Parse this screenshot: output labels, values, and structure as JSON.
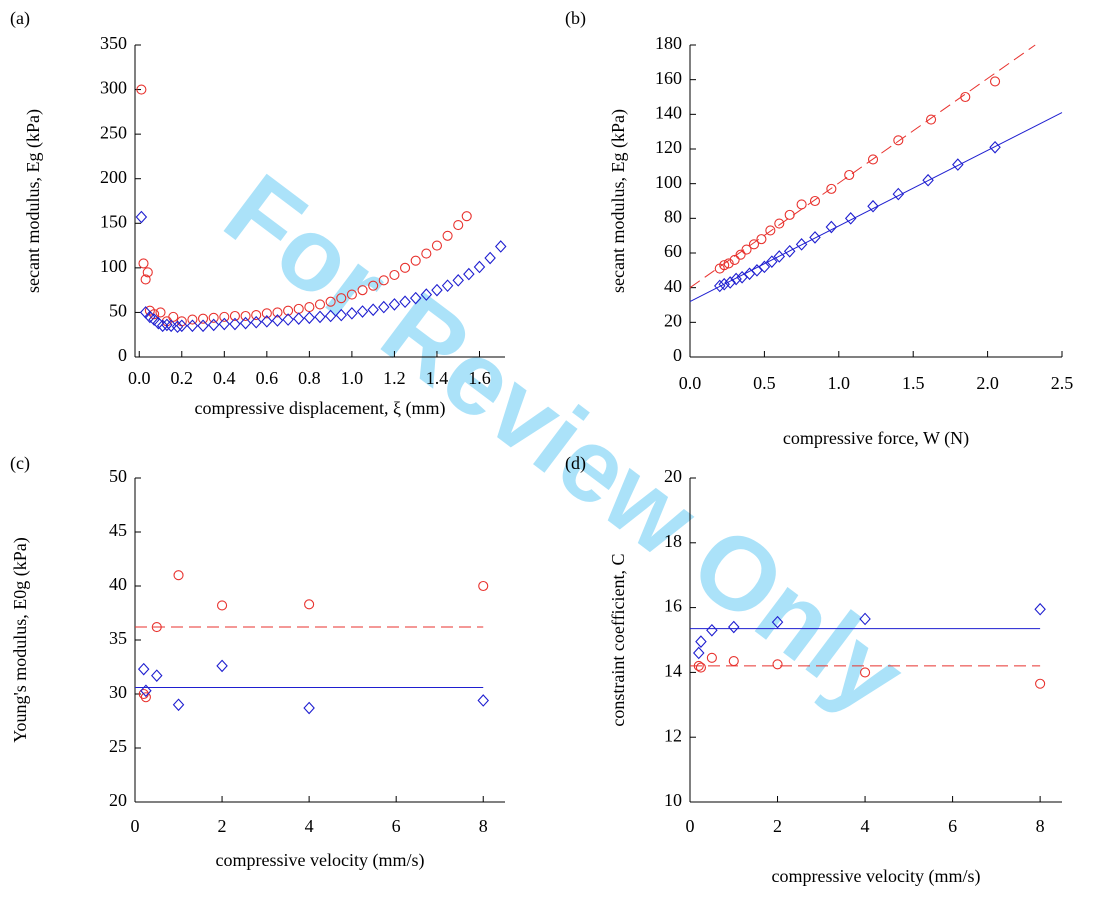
{
  "watermark": "For Review Only",
  "chart_data": [
    {
      "type": "scatter",
      "panel": "(a)",
      "xlabel": "compressive displacement, ξ (mm)",
      "ylabel": "secant modulus, Eg (kPa)",
      "xlim": [
        -0.02,
        1.72
      ],
      "xticks": [
        {
          "value": 0,
          "label": "0.0"
        },
        0.2,
        0.4,
        0.6,
        0.8,
        {
          "value": 1,
          "label": "1.0"
        },
        1.2,
        1.4,
        1.6
      ],
      "ylim": [
        0,
        350
      ],
      "yticks": [
        0,
        50,
        100,
        150,
        200,
        250,
        300,
        350
      ],
      "series": [
        {
          "color": "#e8322e",
          "marker": "circle",
          "x": [
            0.01,
            0.02,
            0.03,
            0.04,
            0.05,
            0.07,
            0.1,
            0.13,
            0.16,
            0.2,
            0.25,
            0.3,
            0.35,
            0.4,
            0.45,
            0.5,
            0.55,
            0.6,
            0.65,
            0.7,
            0.75,
            0.8,
            0.85,
            0.9,
            0.95,
            1.0,
            1.05,
            1.1,
            1.15,
            1.2,
            1.25,
            1.3,
            1.35,
            1.4,
            1.45,
            1.5,
            1.54
          ],
          "y": [
            300,
            105,
            87,
            95,
            52,
            48,
            50,
            40,
            45,
            40,
            42,
            43,
            44,
            45,
            46,
            46,
            47,
            49,
            50,
            52,
            54,
            56,
            59,
            62,
            66,
            70,
            75,
            80,
            86,
            92,
            100,
            108,
            116,
            125,
            136,
            148,
            158
          ]
        },
        {
          "color": "#1f1fd0",
          "marker": "diamond",
          "x": [
            0.01,
            0.03,
            0.05,
            0.07,
            0.09,
            0.11,
            0.13,
            0.15,
            0.18,
            0.2,
            0.25,
            0.3,
            0.35,
            0.4,
            0.45,
            0.5,
            0.55,
            0.6,
            0.65,
            0.7,
            0.75,
            0.8,
            0.85,
            0.9,
            0.95,
            1.0,
            1.05,
            1.1,
            1.15,
            1.2,
            1.25,
            1.3,
            1.35,
            1.4,
            1.45,
            1.5,
            1.55,
            1.6,
            1.65,
            1.7
          ],
          "y": [
            157,
            50,
            45,
            42,
            38,
            35,
            36,
            35,
            34,
            35,
            35,
            35,
            36,
            37,
            37,
            38,
            39,
            40,
            41,
            42,
            43,
            44,
            45,
            46,
            47,
            49,
            51,
            53,
            56,
            59,
            62,
            66,
            70,
            75,
            80,
            86,
            93,
            101,
            111,
            124
          ]
        }
      ]
    },
    {
      "type": "scatter",
      "panel": "(b)",
      "xlabel": "compressive force, W (N)",
      "ylabel": "secant modulus, Eg (kPa)",
      "xlim": [
        0,
        2.5
      ],
      "xticks": [
        {
          "value": 0,
          "label": "0.0"
        },
        0.5,
        {
          "value": 1,
          "label": "1.0"
        },
        1.5,
        {
          "value": 2,
          "label": "2.0"
        },
        2.5
      ],
      "ylim": [
        0,
        180
      ],
      "yticks": [
        0,
        20,
        40,
        60,
        80,
        100,
        120,
        140,
        160,
        180
      ],
      "series": [
        {
          "color": "#e8322e",
          "marker": "circle",
          "x": [
            0.2,
            0.23,
            0.26,
            0.3,
            0.34,
            0.38,
            0.43,
            0.48,
            0.54,
            0.6,
            0.67,
            0.75,
            0.84,
            0.95,
            1.07,
            1.23,
            1.4,
            1.62,
            1.85,
            2.05
          ],
          "y": [
            51,
            53,
            54,
            56,
            59,
            62,
            65,
            68,
            73,
            77,
            82,
            88,
            90,
            97,
            105,
            114,
            125,
            137,
            150,
            159
          ]
        },
        {
          "color": "#1f1fd0",
          "marker": "diamond",
          "x": [
            0.2,
            0.23,
            0.27,
            0.31,
            0.35,
            0.4,
            0.45,
            0.5,
            0.55,
            0.6,
            0.67,
            0.75,
            0.84,
            0.95,
            1.08,
            1.23,
            1.4,
            1.6,
            1.8,
            2.05
          ],
          "y": [
            41,
            42,
            43,
            45,
            46,
            48,
            50,
            52,
            55,
            58,
            61,
            65,
            69,
            75,
            80,
            87,
            94,
            102,
            111,
            121
          ]
        }
      ],
      "fits": [
        {
          "color": "#e8322e",
          "dashed": true,
          "x": [
            0,
            2.32
          ],
          "y": [
            40,
            180
          ]
        },
        {
          "color": "#1f1fd0",
          "dashed": false,
          "x": [
            0,
            2.5
          ],
          "y": [
            32,
            141
          ]
        }
      ]
    },
    {
      "type": "scatter",
      "panel": "(c)",
      "xlabel": "compressive velocity (mm/s)",
      "ylabel": "Young's modulus, E0g (kPa)",
      "xlim": [
        0,
        8.5
      ],
      "xticks": [
        0,
        2,
        4,
        6,
        8
      ],
      "ylim": [
        20,
        50
      ],
      "yticks": [
        20,
        25,
        30,
        35,
        40,
        45,
        50
      ],
      "series": [
        {
          "color": "#e8322e",
          "marker": "circle",
          "x": [
            0.2,
            0.25,
            0.5,
            1,
            2,
            4,
            8
          ],
          "y": [
            30,
            29.7,
            36.2,
            41,
            38.2,
            38.3,
            40
          ]
        },
        {
          "color": "#1f1fd0",
          "marker": "diamond",
          "x": [
            0.2,
            0.25,
            0.5,
            1,
            2,
            4,
            8
          ],
          "y": [
            32.3,
            30.3,
            31.7,
            29,
            32.6,
            28.7,
            29.4
          ]
        }
      ],
      "fits": [
        {
          "color": "#e8322e",
          "dashed": true,
          "x": [
            0,
            8
          ],
          "y": [
            36.2,
            36.2
          ]
        },
        {
          "color": "#1f1fd0",
          "dashed": false,
          "x": [
            0,
            8
          ],
          "y": [
            30.6,
            30.6
          ]
        }
      ]
    },
    {
      "type": "scatter",
      "panel": "(d)",
      "xlabel": "compressive velocity (mm/s)",
      "ylabel": "constraint coefficient, C",
      "xlim": [
        0,
        8.5
      ],
      "xticks": [
        0,
        2,
        4,
        6,
        8
      ],
      "ylim": [
        10,
        20
      ],
      "yticks": [
        10,
        12,
        14,
        16,
        18,
        20
      ],
      "series": [
        {
          "color": "#e8322e",
          "marker": "circle",
          "x": [
            0.2,
            0.25,
            0.5,
            1,
            2,
            4,
            8
          ],
          "y": [
            14.2,
            14.15,
            14.45,
            14.35,
            14.25,
            14,
            13.65
          ]
        },
        {
          "color": "#1f1fd0",
          "marker": "diamond",
          "x": [
            0.2,
            0.25,
            0.5,
            1,
            2,
            4,
            8
          ],
          "y": [
            14.6,
            14.95,
            15.3,
            15.4,
            15.55,
            15.65,
            15.95
          ]
        }
      ],
      "fits": [
        {
          "color": "#e8322e",
          "dashed": true,
          "x": [
            0,
            8
          ],
          "y": [
            14.2,
            14.2
          ]
        },
        {
          "color": "#1f1fd0",
          "dashed": false,
          "x": [
            0,
            8
          ],
          "y": [
            15.35,
            15.35
          ]
        }
      ]
    }
  ]
}
